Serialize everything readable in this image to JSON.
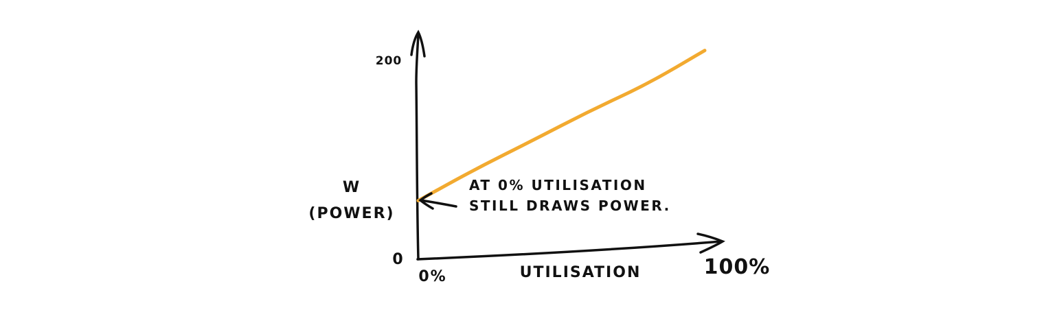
{
  "chart_data": {
    "type": "line",
    "xlabel": "UTILISATION",
    "ylabel": "W",
    "ylabel_sub": "(POWER)",
    "x_ticks": {
      "min_label": "0%",
      "max_label": "100%"
    },
    "y_ticks": {
      "min_label": "0",
      "max_label": "200"
    },
    "xlim": [
      0,
      100
    ],
    "ylim": [
      0,
      200
    ],
    "grid": false,
    "series": [
      {
        "color": "#f2aa30",
        "x": [
          0,
          20,
          40,
          60,
          80,
          100
        ],
        "y": [
          58,
          90,
          119,
          149,
          176,
          210
        ]
      }
    ],
    "annotation": {
      "line1": "AT 0% UTILISATION",
      "line2": "STILL DRAWS POWER."
    }
  }
}
